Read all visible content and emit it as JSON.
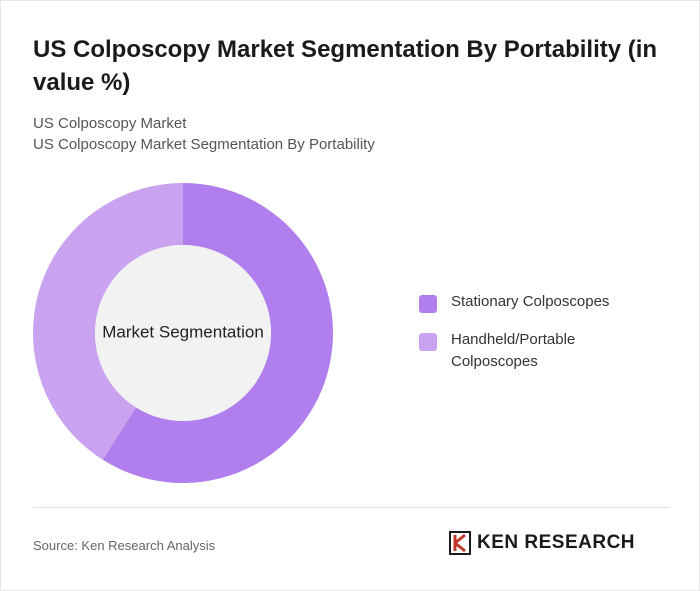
{
  "chart_data": {
    "type": "donut",
    "title": "US Colposcopy Market Segmentation By Portability (in value %)",
    "subtitle": [
      "US Colposcopy Market",
      "US Colposcopy Market Segmentation By Portability"
    ],
    "center_label": "Market Segmentation",
    "categories": [
      "Stationary Colposcopes",
      "Handheld/Portable Colposcopes"
    ],
    "values": [
      59,
      41
    ],
    "colors": [
      "#b07fed",
      "#c9a2f0"
    ]
  },
  "source": "Source: Ken Research Analysis",
  "logo": "KEN RESEARCH"
}
